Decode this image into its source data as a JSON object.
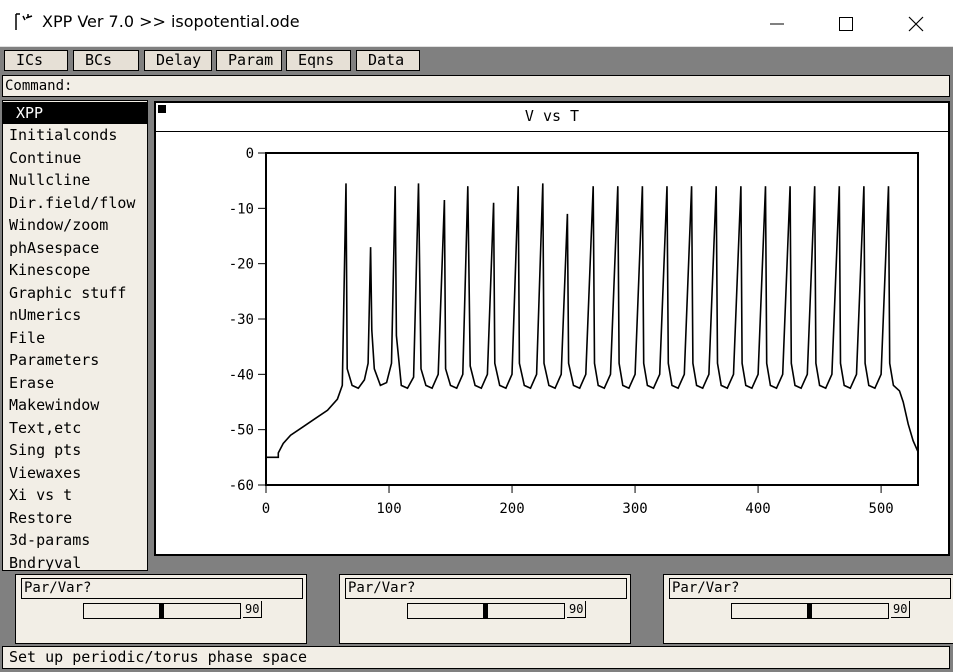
{
  "window": {
    "title": "XPP Ver 7.0 >> isopotential.ode",
    "icons": [
      "app-icon",
      "minimize-icon",
      "maximize-icon",
      "close-icon"
    ]
  },
  "toolbar": {
    "buttons": [
      "ICs",
      "BCs",
      "Delay",
      "Param",
      "Eqns",
      "Data"
    ]
  },
  "command": {
    "label": "Command:"
  },
  "menu": {
    "selected": "XPP",
    "items": [
      "XPP",
      "Initialconds",
      "Continue",
      "Nullcline",
      "Dir.field/flow",
      "Window/zoom",
      "phAsespace",
      "Kinescope",
      "Graphic stuff",
      "nUmerics",
      "File",
      "Parameters",
      "Erase",
      "Makewindow",
      "Text,etc",
      "Sing pts",
      "Viewaxes",
      "Xi vs t",
      "Restore",
      "3d-params",
      "Bndryval"
    ]
  },
  "graph": {
    "title": "V vs T"
  },
  "chart_data": {
    "type": "line",
    "title": "V vs T",
    "xlabel": "",
    "ylabel": "",
    "xlim": [
      0,
      530
    ],
    "ylim": [
      -60,
      0
    ],
    "xticks": [
      "0",
      "100",
      "200",
      "300",
      "400",
      "500"
    ],
    "yticks": [
      "0",
      "-10",
      "-20",
      "-30",
      "-40",
      "-50",
      "-60"
    ],
    "grid": false,
    "series": [
      {
        "points": [
          [
            0,
            -55
          ],
          [
            10,
            -55
          ],
          [
            10,
            -54.2
          ],
          [
            14,
            -52.5
          ],
          [
            20,
            -51
          ],
          [
            30,
            -49.5
          ],
          [
            40,
            -48
          ],
          [
            50,
            -46.5
          ],
          [
            58,
            -44.5
          ],
          [
            62,
            -42
          ],
          [
            65,
            -5.5
          ],
          [
            66,
            -39
          ],
          [
            70,
            -42
          ],
          [
            75,
            -42.5
          ],
          [
            80,
            -41
          ],
          [
            83,
            -38
          ],
          [
            85,
            -17
          ],
          [
            86,
            -32
          ],
          [
            88,
            -39
          ],
          [
            93,
            -42
          ],
          [
            98,
            -41.5
          ],
          [
            102,
            -38
          ],
          [
            105,
            -6
          ],
          [
            106,
            -33
          ],
          [
            110,
            -42
          ],
          [
            115,
            -42.5
          ],
          [
            120,
            -40.5
          ],
          [
            124,
            -5.5
          ],
          [
            126,
            -39
          ],
          [
            130,
            -42
          ],
          [
            135,
            -42.5
          ],
          [
            140,
            -40
          ],
          [
            145,
            -8.5
          ],
          [
            146,
            -39
          ],
          [
            150,
            -42
          ],
          [
            155,
            -42.5
          ],
          [
            160,
            -40
          ],
          [
            164,
            -6
          ],
          [
            166,
            -38.5
          ],
          [
            170,
            -42
          ],
          [
            175,
            -42.5
          ],
          [
            180,
            -40
          ],
          [
            185,
            -9
          ],
          [
            186,
            -38
          ],
          [
            190,
            -42
          ],
          [
            195,
            -42.5
          ],
          [
            200,
            -40
          ],
          [
            205,
            -6
          ],
          [
            206,
            -38
          ],
          [
            210,
            -42
          ],
          [
            215,
            -42.5
          ],
          [
            220,
            -40
          ],
          [
            225,
            -5.5
          ],
          [
            226,
            -38
          ],
          [
            230,
            -42
          ],
          [
            235,
            -42.5
          ],
          [
            240,
            -40
          ],
          [
            245,
            -11
          ],
          [
            246,
            -38
          ],
          [
            250,
            -42
          ],
          [
            255,
            -42.5
          ],
          [
            260,
            -40
          ],
          [
            266,
            -6
          ],
          [
            267,
            -38
          ],
          [
            270,
            -42
          ],
          [
            275,
            -42.5
          ],
          [
            280,
            -40
          ],
          [
            286,
            -6
          ],
          [
            287,
            -38
          ],
          [
            290,
            -42
          ],
          [
            295,
            -42.5
          ],
          [
            300,
            -40
          ],
          [
            306,
            -6
          ],
          [
            307,
            -38
          ],
          [
            310,
            -42
          ],
          [
            315,
            -42.5
          ],
          [
            320,
            -40
          ],
          [
            326,
            -6
          ],
          [
            327,
            -38
          ],
          [
            330,
            -42
          ],
          [
            335,
            -42.5
          ],
          [
            340,
            -40
          ],
          [
            346,
            -6
          ],
          [
            347,
            -38
          ],
          [
            350,
            -42
          ],
          [
            355,
            -42.5
          ],
          [
            360,
            -40
          ],
          [
            366,
            -6
          ],
          [
            367,
            -38
          ],
          [
            370,
            -42
          ],
          [
            375,
            -42.5
          ],
          [
            380,
            -40
          ],
          [
            386,
            -6
          ],
          [
            387,
            -38
          ],
          [
            390,
            -42
          ],
          [
            395,
            -42.5
          ],
          [
            400,
            -40
          ],
          [
            406,
            -6
          ],
          [
            407,
            -38
          ],
          [
            410,
            -42
          ],
          [
            415,
            -42.5
          ],
          [
            420,
            -40
          ],
          [
            426,
            -6
          ],
          [
            427,
            -38
          ],
          [
            430,
            -42
          ],
          [
            435,
            -42.5
          ],
          [
            440,
            -40
          ],
          [
            446,
            -6
          ],
          [
            447,
            -38
          ],
          [
            450,
            -42
          ],
          [
            455,
            -42.5
          ],
          [
            460,
            -40
          ],
          [
            466,
            -6
          ],
          [
            467,
            -38
          ],
          [
            470,
            -42
          ],
          [
            475,
            -42.5
          ],
          [
            480,
            -40
          ],
          [
            486,
            -6
          ],
          [
            487,
            -38
          ],
          [
            490,
            -42
          ],
          [
            495,
            -42.5
          ],
          [
            500,
            -40
          ],
          [
            506,
            -6
          ],
          [
            507,
            -38
          ],
          [
            510,
            -42
          ],
          [
            515,
            -43
          ],
          [
            518,
            -45
          ],
          [
            522,
            -49
          ],
          [
            526,
            -52
          ],
          [
            530,
            -54
          ]
        ]
      }
    ]
  },
  "sliders": [
    {
      "label": "Par/Var?",
      "max": "90",
      "value": 0.5
    },
    {
      "label": "Par/Var?",
      "max": "90",
      "value": 0.5
    },
    {
      "label": "Par/Var?",
      "max": "90",
      "value": 0.5
    }
  ],
  "status": {
    "text": "Set up periodic/torus phase space"
  }
}
